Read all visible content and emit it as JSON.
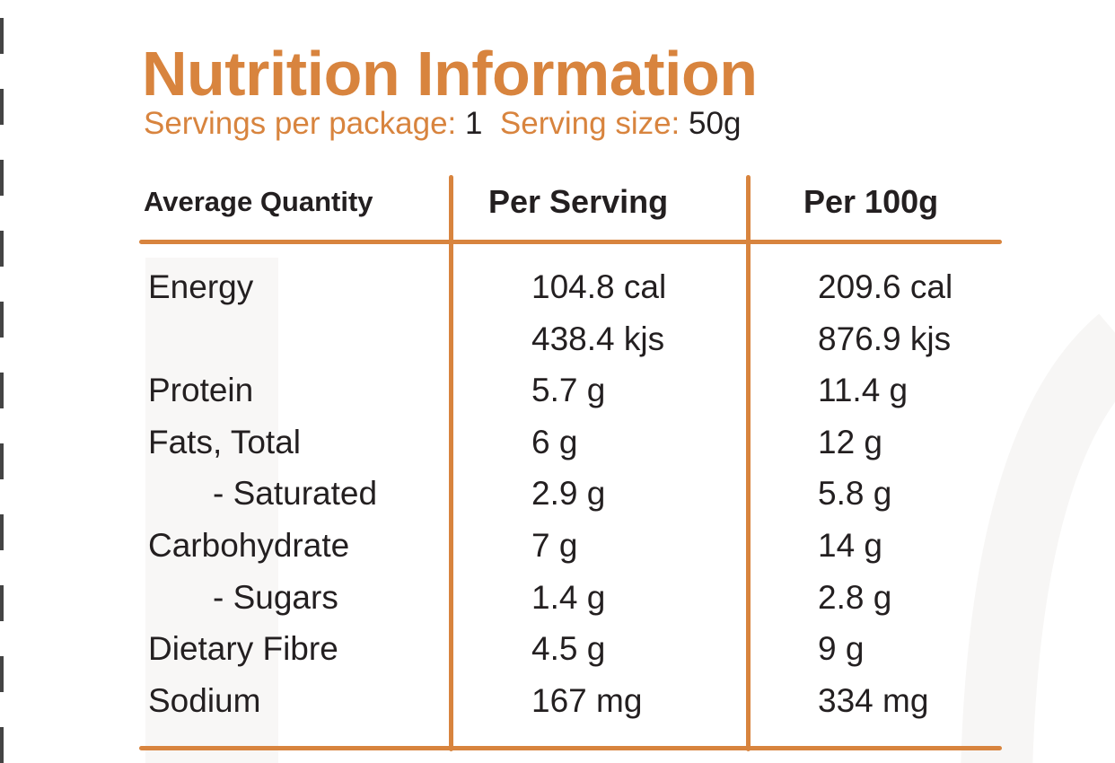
{
  "title": "Nutrition Information",
  "servings": {
    "per_package_label": "Servings per package:",
    "per_package_value": "1",
    "size_label": "Serving size:",
    "size_value": "50g"
  },
  "headers": {
    "quantity": "Average Quantity",
    "per_serving": "Per Serving",
    "per_100g": "Per 100g"
  },
  "rows": [
    {
      "label": "Energy",
      "indent": false,
      "per_serving": "104.8 cal",
      "per_100g": "209.6 cal"
    },
    {
      "label": "",
      "indent": false,
      "per_serving": "438.4 kjs",
      "per_100g": "876.9 kjs"
    },
    {
      "label": "Protein",
      "indent": false,
      "per_serving": "5.7 g",
      "per_100g": "11.4 g"
    },
    {
      "label": "Fats, Total",
      "indent": false,
      "per_serving": "6 g",
      "per_100g": "12 g"
    },
    {
      "label": "- Saturated",
      "indent": true,
      "per_serving": "2.9 g",
      "per_100g": "5.8 g"
    },
    {
      "label": "Carbohydrate",
      "indent": false,
      "per_serving": "7 g",
      "per_100g": "14 g"
    },
    {
      "label": "- Sugars",
      "indent": true,
      "per_serving": "1.4 g",
      "per_100g": "2.8 g"
    },
    {
      "label": "Dietary Fibre",
      "indent": false,
      "per_serving": "4.5 g",
      "per_100g": "9 g"
    },
    {
      "label": "Sodium",
      "indent": false,
      "per_serving": "167 mg",
      "per_100g": "334 mg"
    }
  ],
  "colors": {
    "accent": "#d8843e",
    "text": "#231f20"
  }
}
